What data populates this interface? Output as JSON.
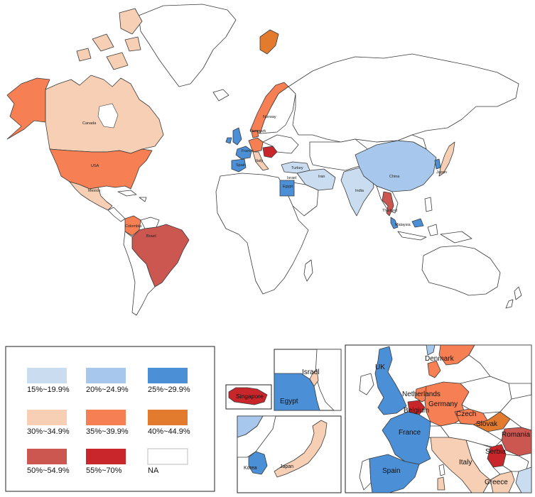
{
  "colors": {
    "c15": "#c9dcf0",
    "c20": "#a7c8ec",
    "c25": "#4b8fd6",
    "c30": "#f6cfb4",
    "c35": "#f67f53",
    "c40": "#e37b2f",
    "c50": "#cc5650",
    "c55": "#c8262b",
    "na": "#ffffff",
    "border": "#3a3a3a"
  },
  "legend": [
    {
      "label": "15%~19.9%",
      "color": "#c9dcf0"
    },
    {
      "label": "20%~24.9%",
      "color": "#a7c8ec"
    },
    {
      "label": "25%~29.9%",
      "color": "#4b8fd6"
    },
    {
      "label": "30%~34.9%",
      "color": "#f6cfb4"
    },
    {
      "label": "35%~39.9%",
      "color": "#f67f53"
    },
    {
      "label": "40%~44.9%",
      "color": "#e37b2f"
    },
    {
      "label": "50%~54.9%",
      "color": "#cc5650"
    },
    {
      "label": "55%~70%",
      "color": "#c8262b"
    },
    {
      "label": "NA",
      "color": "#ffffff"
    }
  ],
  "world_labels": {
    "canada": "Canada",
    "usa": "USA",
    "mexico": "Mexico",
    "colombia": "Colombia",
    "brazil": "Brazil",
    "norway": "Norway",
    "denmark": "Denmark",
    "france": "France",
    "spain": "Spain",
    "italy": "Italy",
    "turkey": "Turkey",
    "egypt": "Egypt",
    "israel": "Israel",
    "iran": "Iran",
    "india": "India",
    "china": "China",
    "japan": "Japan",
    "thailand": "Thailand",
    "malaysia": "Malaysia"
  },
  "insets": {
    "egypt_israel": {
      "israel": "Israel",
      "egypt": "Egypt"
    },
    "singapore": {
      "label": "Singapore"
    },
    "korea_japan": {
      "korea": "Korea",
      "japan": "Japan"
    },
    "europe": {
      "uk": "UK",
      "denmark": "Denmark",
      "netherlands": "Netherlands",
      "belgium": "Belgium",
      "germany": "Germany",
      "czech": "Czech",
      "slovak": "Slovak",
      "romania": "Romania",
      "france": "France",
      "serbia": "Serbia",
      "italy": "Italy",
      "spain": "Spain",
      "greece": "Greece"
    }
  }
}
